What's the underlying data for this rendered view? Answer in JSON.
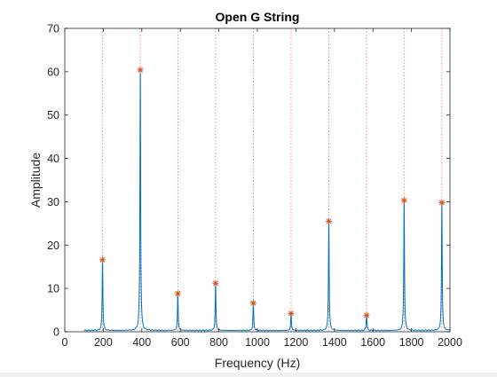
{
  "chart_data": {
    "type": "line",
    "title": "Open G String",
    "xlabel": "Frequency (Hz)",
    "ylabel": "Amplitude",
    "xlim": [
      0,
      2000
    ],
    "ylim": [
      0,
      70
    ],
    "xticks": [
      0,
      200,
      400,
      600,
      800,
      1000,
      1200,
      1400,
      1600,
      1800,
      2000
    ],
    "yticks": [
      0,
      10,
      20,
      30,
      40,
      50,
      60,
      70
    ],
    "grid": false,
    "colors": {
      "spectrum": "#0072bd",
      "peaks": "#d95319",
      "harmonic_lines": "#e8787e"
    },
    "peaks": [
      {
        "x": 196,
        "y": 16.6
      },
      {
        "x": 392,
        "y": 60.4
      },
      {
        "x": 587,
        "y": 8.8
      },
      {
        "x": 783,
        "y": 11.2
      },
      {
        "x": 979,
        "y": 6.6
      },
      {
        "x": 1175,
        "y": 4.2
      },
      {
        "x": 1371,
        "y": 25.5
      },
      {
        "x": 1567,
        "y": 3.8
      },
      {
        "x": 1762,
        "y": 30.3
      },
      {
        "x": 1958,
        "y": 29.8
      }
    ],
    "harmonic_lines_x": [
      196,
      392,
      587,
      783,
      979,
      1175,
      1371,
      1567,
      1762,
      1958
    ],
    "spectrum_range": [
      100,
      2000
    ],
    "baseline_amplitude": 0.3
  }
}
